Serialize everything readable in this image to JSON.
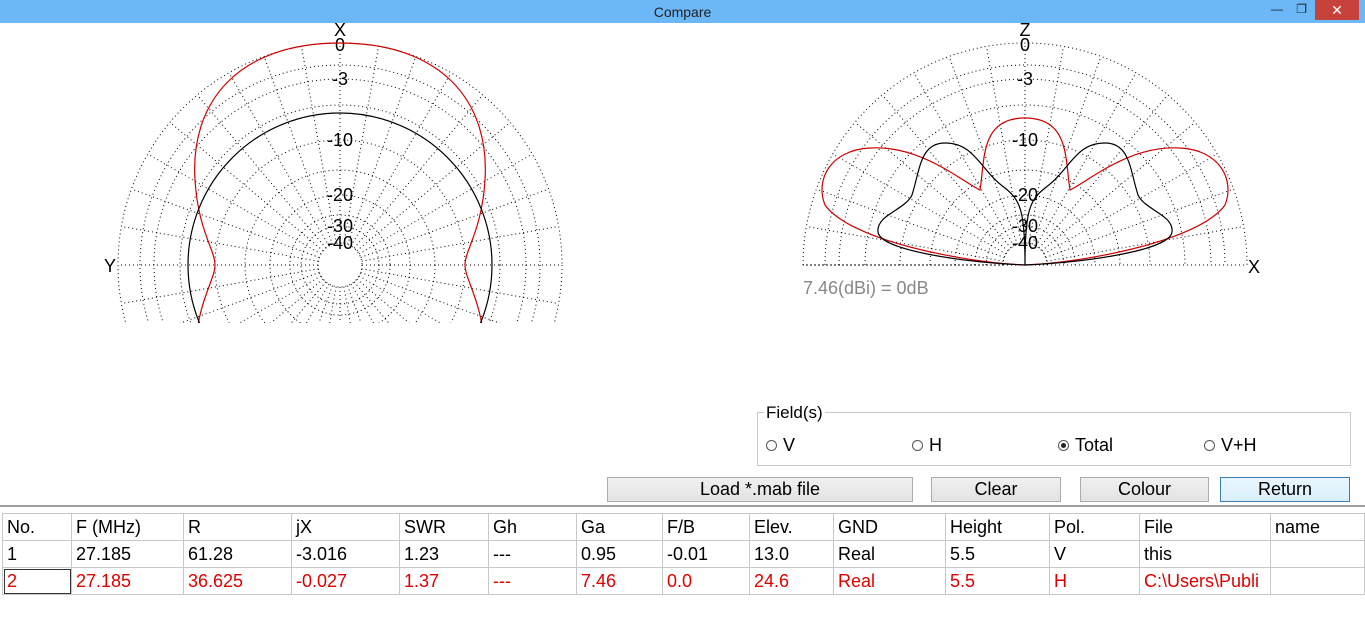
{
  "window": {
    "title": "Compare"
  },
  "top_view": {
    "axis_top": "X",
    "axis_left": "Y",
    "ring_labels": [
      "0",
      "-3",
      "-10",
      "-20",
      "-30",
      "-40"
    ]
  },
  "side_view": {
    "axis_top": "Z",
    "axis_right": "X",
    "ring_labels": [
      "0",
      "-3",
      "-10",
      "-20",
      "-30",
      "-40"
    ],
    "gain_note": "7.46(dBi) = 0dB"
  },
  "fields": {
    "legend": "Field(s)",
    "options": [
      "V",
      "H",
      "Total",
      "V+H"
    ],
    "selected": "Total"
  },
  "buttons": [
    "Load *.mab file",
    "Clear",
    "Colour",
    "Return"
  ],
  "table": {
    "headers": [
      "No.",
      "F (MHz)",
      "R",
      "jX",
      "SWR",
      "Gh",
      "Ga",
      "F/B",
      "Elev.",
      "GND",
      "Height",
      "Pol.",
      "File",
      "name"
    ],
    "rows": [
      [
        "1",
        "27.185",
        "61.28",
        "-3.016",
        "1.23",
        "---",
        "0.95",
        "-0.01",
        "13.0",
        "Real",
        "5.5",
        "V",
        "this",
        ""
      ],
      [
        "2",
        "27.185",
        "36.625",
        "-0.027",
        "1.37",
        "---",
        "7.46",
        "0.0",
        "24.6",
        "Real",
        "5.5",
        "H",
        "C:\\Users\\Publi",
        ""
      ]
    ]
  }
}
